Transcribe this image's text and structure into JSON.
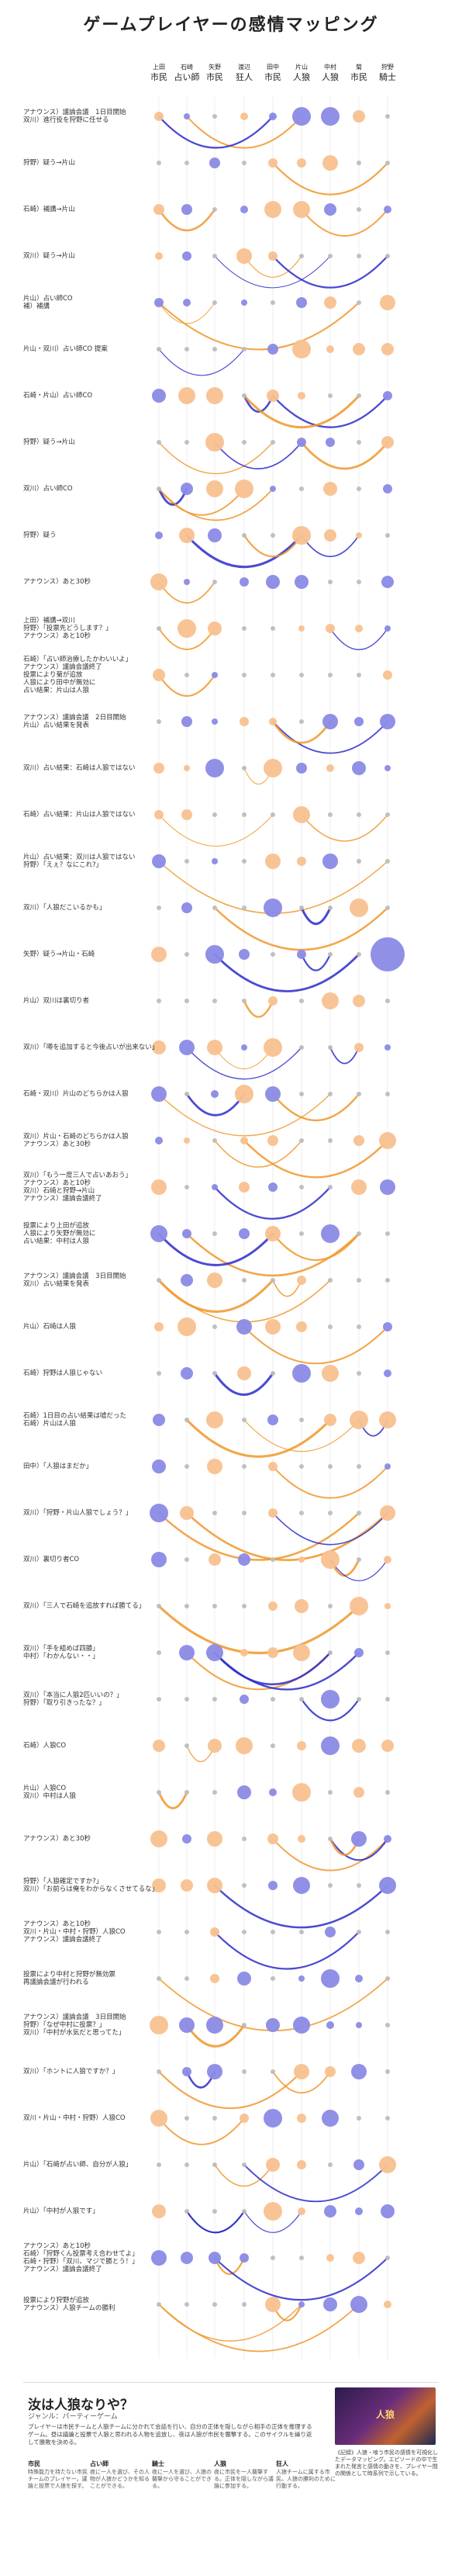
{
  "title": "ゲームプレイヤーの感情マッピング",
  "players": [
    {
      "name": "上田",
      "role": "市民"
    },
    {
      "name": "石崎",
      "role": "占い師"
    },
    {
      "name": "矢野",
      "role": "市民"
    },
    {
      "name": "渡辺",
      "role": "狂人"
    },
    {
      "name": "田中",
      "role": "市民"
    },
    {
      "name": "片山",
      "role": "人狼"
    },
    {
      "name": "中村",
      "role": "人狼"
    },
    {
      "name": "菊",
      "role": "市民"
    },
    {
      "name": "狩野",
      "role": "騎士"
    }
  ],
  "colors": {
    "positive": "#f0962a",
    "positive_light": "#f8c190",
    "negative": "#2b2bc9",
    "negative_light": "#8a8ae6",
    "neutral": "#bdbdbd"
  },
  "events": [
    "アナウンス）議論会議　1日目開始\n双川）進行役を狩野に任せる",
    "狩野）疑う→片山",
    "石崎）補講→片山",
    "双川）疑う→片山",
    "片山）占い師CO\n補）補講",
    "片山・双川）占い師CO 提案",
    "石崎・片山）占い師CO",
    "狩野）疑う→片山",
    "双川）占い師CO",
    "狩野）疑う",
    "アナウンス）あと30秒",
    "上田）補講→双川\n狩野）「投票先どうします？」\nアナウンス）あと10秒",
    "石崎）「占い師治療したかわいいよ」\nアナウンス）議論会議終了\n投票により菊が追放\n人狼により田中が無効に\n占い結果：片山は人狼",
    "アナウンス）議論会議　2日目開始\n片山）占い結果を発表",
    "双川）占い結果：石崎は人狼ではない",
    "石崎）占い結果：片山は人狼ではない",
    "片山）占い結果：双川は人狼ではない\n狩野）「えぇ？なにこれ?」",
    "双川）「人狼だこいるかも」",
    "矢野）疑う→片山・石崎",
    "片山）双川は裏切り者",
    "双川）「噂を追加すると今後占いが出来ない」",
    "石崎・双川）片山のどちらかは人狼",
    "双川）片山・石崎のどちらかは人狼\nアナウンス）あと30秒",
    "双川）「もう一度三人で占いあおう」\nアナウンス）あと10秒\n双川）石崎と狩野→片山\nアナウンス）議論会議終了",
    "投票により上田が追放\n人狼により矢野が無効に\n占い結果：中村は人狼",
    "アナウンス）議論会議　3日目開始\n双川）占い結果を発表",
    "片山）石崎は人狼",
    "石崎）狩野は人狼じゃない",
    "石崎）1日目の占い結果は嘘だった\n石崎）片山は人狼",
    "田中）「人狼はまだか」",
    "双川）「狩野・片山人狼でしょう？」",
    "双川）裏切り者CO",
    "双川）「三人で石崎を追放すれば勝てる」",
    "双川）「手を組めば四勝」\n中村）「わかんない・・」",
    "双川）「本当に人狼2匹いいの？」\n狩野）「取り引きったな？」",
    "石崎）人狼CO",
    "片山）人狼CO\n双川）中村は人狼",
    "アナウンス）あと30秒",
    "狩野）「人狼確定ですか?」\n双川）「お前らは俺をわからなくさせてるな」",
    "アナウンス）あと10秒\n双川・片山・中村・狩野）人狼CO\nアナウンス）議論会議終了",
    "投票により中村と狩野が無効票\n再議論会議が行われる",
    "アナウンス）議論会議　3日目開始\n狩野）「なぜ中村に投票？」\n双川）「中村が水気だと思ってた」",
    "双川）「ホントに人狼ですか？」",
    "双川・片山・中村・狩野）人狼CO",
    "片山）「石崎が占い師、自分が人狼」",
    "片山）「中村が人狼です」",
    "アナウンス）あと10秒\n石崎）「狩野くん投票考え合わせてよ」\n石崎・狩野）「双川、マジで勝とう！」\nアナウンス）議論会議終了",
    "投票により狩野が追放\nアナウンス）人狼チームの勝利"
  ],
  "footer": {
    "title": "汝は人狼なりや？",
    "subtitle": "ジャンル：パーティーゲーム",
    "desc": "プレイヤーは市民チームと人狼チームに分かれて会話を行い、自分の正体を隠しながら相手の正体を推理するゲーム。昼は議論と投票で人狼と思われる人物を追放し、夜は人狼が市民を襲撃する。このサイクルを繰り返して勝敗を決める。",
    "roles": [
      {
        "name": "市民",
        "text": "特殊能力を持たない市民チームのプレイヤー。議論と投票で人狼を探す。"
      },
      {
        "name": "占い師",
        "text": "夜に一人を選び、その人物が人狼かどうかを知ることができる。"
      },
      {
        "name": "騎士",
        "text": "夜に一人を選び、人狼の襲撃から守ることができる。"
      },
      {
        "name": "人狼",
        "text": "夜に市民を一人襲撃する。正体を隠しながら議論に参加する。"
      },
      {
        "name": "狂人",
        "text": "人狼チームに属する市民。人狼の勝利のために行動する。"
      }
    ],
    "image_text": "人狼",
    "right_text": "《記録》人狼・喰う市民の感情を可視化したデータマッピング。エピソードの中で生まれた発言と感情の動きを、プレイヤー間の関係として時系列で示している。"
  }
}
